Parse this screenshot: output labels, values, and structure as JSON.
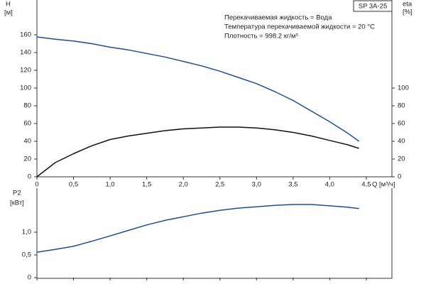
{
  "chart_data": [
    {
      "type": "line",
      "label": "SP 3A-25",
      "annotations": [
        "Перекачиваемая жидкость = Вода",
        "Температура перекачиваемой жидкости = 20 °C",
        "Плотность = 998.2 кг/м³"
      ],
      "ylabel": "H",
      "yunit": "[м]",
      "y2label": "eta",
      "y2unit": "[%]",
      "xlabel": "Q [м³/ч]",
      "x": [
        0,
        0.25,
        0.5,
        0.75,
        1,
        1.25,
        1.5,
        1.75,
        2,
        2.25,
        2.5,
        2.75,
        3,
        3.25,
        3.5,
        3.75,
        4,
        4.25,
        4.4
      ],
      "series": [
        {
          "name": "H",
          "color": "#1f4e8c",
          "values": [
            157.6,
            155,
            153,
            150,
            146,
            143,
            139,
            135,
            130,
            125,
            119,
            112,
            105,
            96,
            86,
            74,
            62,
            49,
            40
          ]
        },
        {
          "name": "eta",
          "color": "#111111",
          "axis": "y2",
          "values": [
            0,
            16,
            26,
            35,
            42,
            46,
            49,
            52,
            54,
            55,
            56,
            56,
            55,
            53,
            50,
            46,
            41,
            36,
            32
          ]
        }
      ],
      "xlim": [
        0,
        4.85
      ],
      "xticks": [
        0,
        {
          "value": 0.5,
          "label": "0,5"
        },
        {
          "value": 1,
          "label": "1,0"
        },
        {
          "value": 1.5,
          "label": "1,5"
        },
        {
          "value": 2,
          "label": "2,0"
        },
        {
          "value": 2.5,
          "label": "2,5"
        },
        {
          "value": 3,
          "label": "3,0"
        },
        {
          "value": 3.5,
          "label": "3,5"
        },
        {
          "value": 4,
          "label": "4,0"
        },
        {
          "value": 4.5,
          "label": "4,5"
        }
      ],
      "ylim": [
        0,
        190
      ],
      "yticks": [
        0,
        20,
        40,
        60,
        80,
        100,
        120,
        140,
        160
      ],
      "y2lim": [
        0,
        190
      ],
      "y2ticks": [
        0,
        20,
        40,
        60,
        80,
        100
      ]
    },
    {
      "type": "line",
      "ylabel": "P2",
      "yunit": "[кВт]",
      "x": [
        0,
        0.25,
        0.5,
        0.75,
        1,
        1.25,
        1.5,
        1.75,
        2,
        2.25,
        2.5,
        2.75,
        3,
        3.25,
        3.5,
        3.75,
        4,
        4.25,
        4.4
      ],
      "series": [
        {
          "name": "P2",
          "color": "#1f4e8c",
          "values": [
            0.56,
            0.62,
            0.69,
            0.8,
            0.92,
            1.04,
            1.16,
            1.26,
            1.34,
            1.42,
            1.48,
            1.53,
            1.56,
            1.59,
            1.61,
            1.61,
            1.58,
            1.55,
            1.52
          ]
        }
      ],
      "xlim": [
        0,
        4.85
      ],
      "xticks": [
        0,
        0.5,
        1,
        1.5,
        2,
        2.5,
        3,
        3.5,
        4,
        4.5
      ],
      "ylim": [
        0,
        1.97
      ],
      "yticks": [
        0,
        {
          "value": 0.5,
          "label": "0,5"
        },
        {
          "value": 1,
          "label": "1,0"
        }
      ]
    }
  ]
}
